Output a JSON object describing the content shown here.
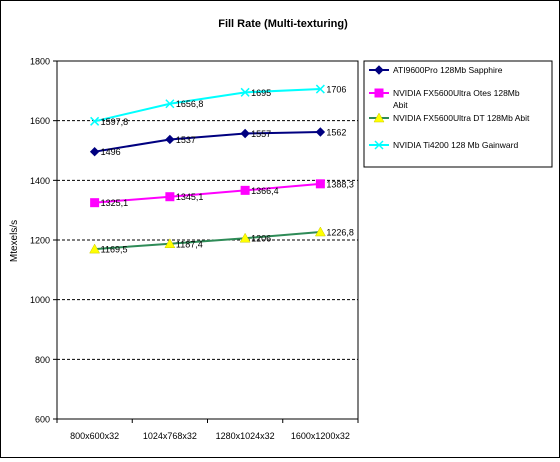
{
  "chart_data": {
    "type": "line",
    "title": "Fill Rate (Multi-texturing)",
    "xlabel": "",
    "ylabel": "Mtexels/s",
    "categories": [
      "800x600x32",
      "1024x768x32",
      "1280x1024x32",
      "1600x1200x32"
    ],
    "ylim": [
      600,
      1800
    ],
    "yticks": [
      600,
      800,
      1000,
      1200,
      1400,
      1600,
      1800
    ],
    "grid": "horizontal dashed",
    "legend_position": "right",
    "series": [
      {
        "name": "ATI9600Pro 128Mb Sapphire",
        "values": [
          1496,
          1537,
          1557,
          1562
        ],
        "labels": [
          "1496",
          "1537",
          "1557",
          "1562"
        ],
        "line_color": "#000080",
        "marker_color": "#000080",
        "marker": "diamond"
      },
      {
        "name": "NVIDIA FX5600Ultra Otes 128Mb Abit",
        "values": [
          1325.1,
          1345.1,
          1366.4,
          1388.3
        ],
        "labels": [
          "1325,1",
          "1345,1",
          "1366,4",
          "1388,3"
        ],
        "line_color": "#ff00ff",
        "marker_color": "#ff00ff",
        "marker": "square"
      },
      {
        "name": "NVIDIA FX5600Ultra DT 128Mb Abit",
        "values": [
          1169.5,
          1187.4,
          1206,
          1226.8
        ],
        "labels": [
          "1169,5",
          "1187,4",
          "1206",
          "1226,8"
        ],
        "line_color": "#2e8b57",
        "marker_color": "#ffff00",
        "marker": "triangle"
      },
      {
        "name": "NVIDIA Ti4200 128 Mb Gainward",
        "values": [
          1597.8,
          1656.8,
          1695,
          1706
        ],
        "labels": [
          "1597,8",
          "1656,8",
          "1695",
          "1706"
        ],
        "line_color": "#00ffff",
        "marker_color": "#00ffff",
        "marker": "x"
      }
    ]
  }
}
